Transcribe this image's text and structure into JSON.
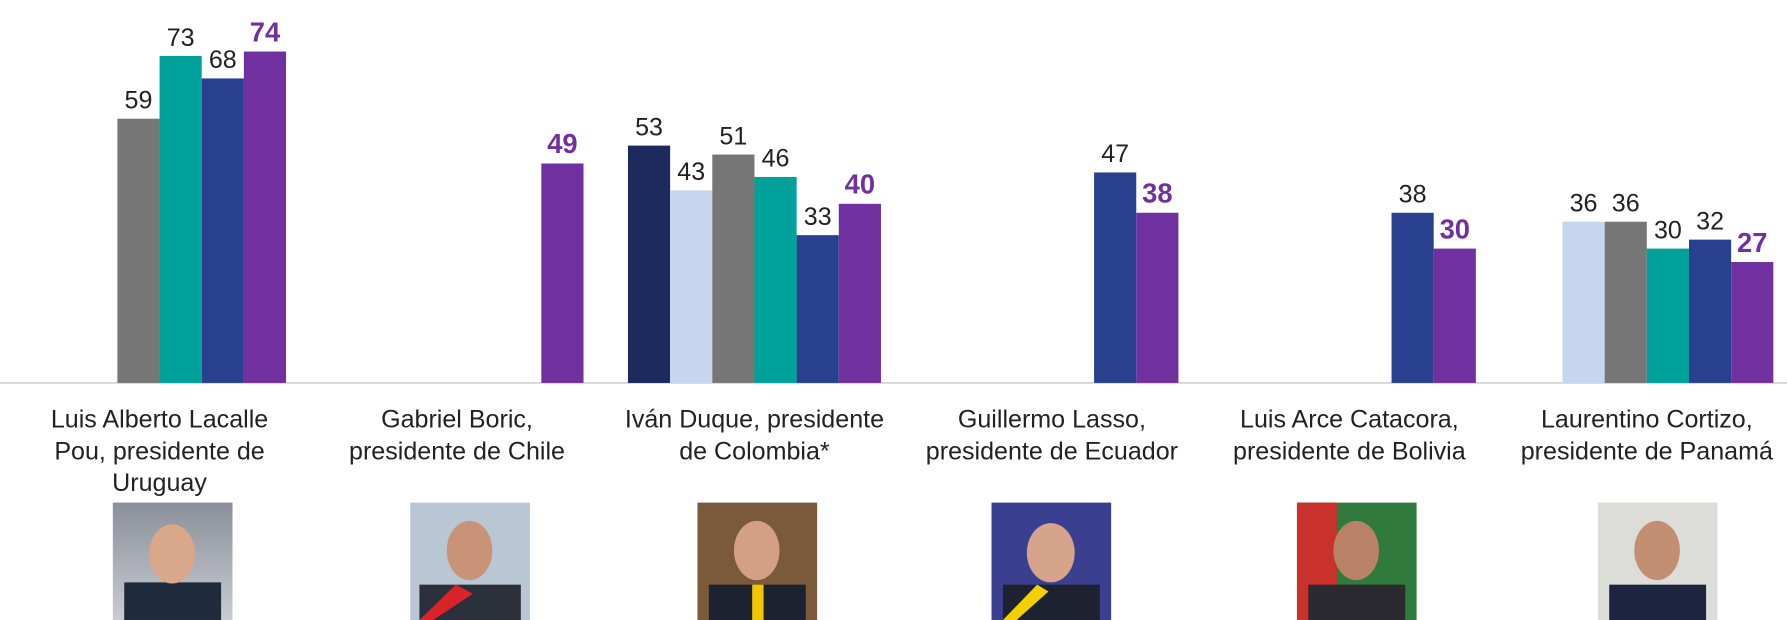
{
  "chart_data": {
    "type": "bar",
    "categories": [
      [
        "Luis Alberto Lacalle",
        "Pou, presidente de",
        "Uruguay"
      ],
      [
        "Gabriel Boric,",
        "presidente de Chile"
      ],
      [
        "Iván Duque, presidente",
        "de Colombia*"
      ],
      [
        "Guillermo Lasso,",
        "presidente de Ecuador"
      ],
      [
        "Luis Arce Catacora,",
        "presidente de Bolivia"
      ],
      [
        "Laurentino Cortizo,",
        "presidente de Panamá"
      ]
    ],
    "series": [
      {
        "color": "#1c2a5e",
        "values": [
          null,
          null,
          53,
          null,
          null,
          null
        ]
      },
      {
        "color": "#c5d6ee",
        "values": [
          null,
          null,
          43,
          null,
          null,
          36
        ]
      },
      {
        "color": "#767676",
        "values": [
          59,
          null,
          51,
          null,
          null,
          36
        ]
      },
      {
        "color": "#00a19a",
        "values": [
          73,
          null,
          46,
          null,
          null,
          30
        ]
      },
      {
        "color": "#28408e",
        "values": [
          68,
          null,
          33,
          47,
          38,
          32
        ]
      },
      {
        "color": "#7030a0",
        "values": [
          74,
          49,
          40,
          38,
          30,
          27
        ]
      }
    ],
    "ylim": [
      0,
      85
    ]
  }
}
